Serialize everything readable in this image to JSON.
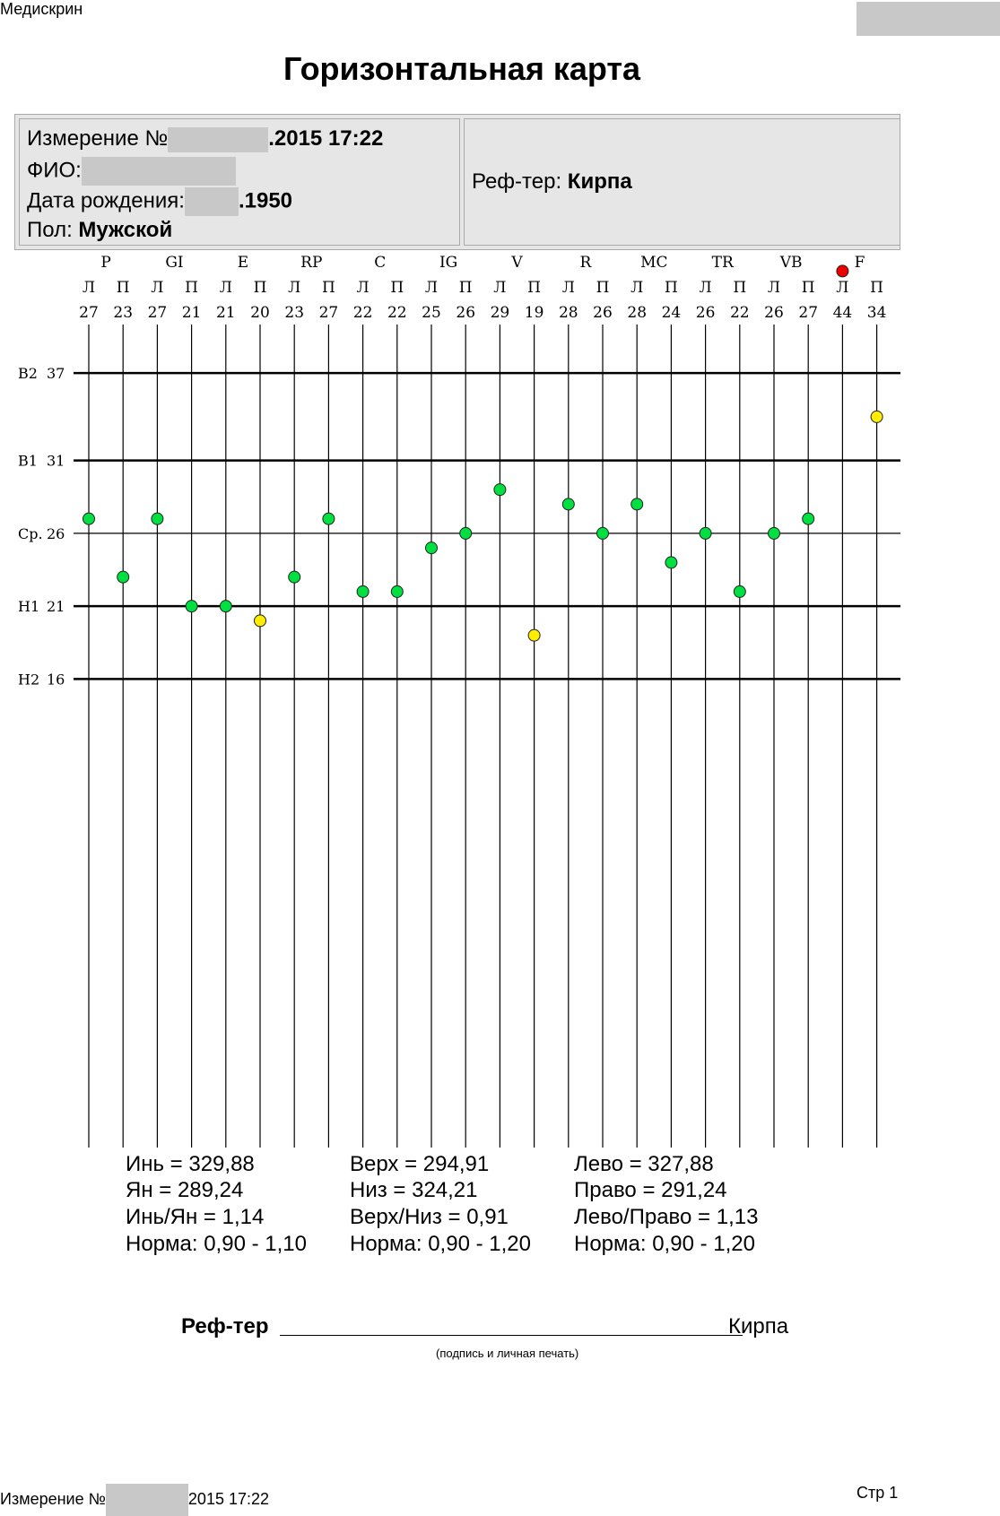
{
  "header": {
    "app_name": "Медискрин",
    "title": "Горизонтальная карта"
  },
  "info": {
    "measurement_label": "Измерение №",
    "measurement_value": ".2015 17:22",
    "name_label": "ФИО:",
    "birth_label": "Дата рождения:",
    "birth_value": ".1950",
    "sex_label": "Пол:",
    "sex_value": "Мужской",
    "referee_label": "Реф-тер:",
    "referee_value": "Кирпа"
  },
  "chart_data": {
    "type": "scatter",
    "meridians": [
      "P",
      "GI",
      "E",
      "RP",
      "C",
      "IG",
      "V",
      "R",
      "MC",
      "TR",
      "VB",
      "F"
    ],
    "sides": [
      "Л",
      "П"
    ],
    "columns": [
      {
        "meridian": "P",
        "side": "Л",
        "value": 27,
        "status": "normal"
      },
      {
        "meridian": "P",
        "side": "П",
        "value": 23,
        "status": "normal"
      },
      {
        "meridian": "GI",
        "side": "Л",
        "value": 27,
        "status": "normal"
      },
      {
        "meridian": "GI",
        "side": "П",
        "value": 21,
        "status": "normal"
      },
      {
        "meridian": "E",
        "side": "Л",
        "value": 21,
        "status": "normal"
      },
      {
        "meridian": "E",
        "side": "П",
        "value": 20,
        "status": "warning"
      },
      {
        "meridian": "RP",
        "side": "Л",
        "value": 23,
        "status": "normal"
      },
      {
        "meridian": "RP",
        "side": "П",
        "value": 27,
        "status": "normal"
      },
      {
        "meridian": "C",
        "side": "Л",
        "value": 22,
        "status": "normal"
      },
      {
        "meridian": "C",
        "side": "П",
        "value": 22,
        "status": "normal"
      },
      {
        "meridian": "IG",
        "side": "Л",
        "value": 25,
        "status": "normal"
      },
      {
        "meridian": "IG",
        "side": "П",
        "value": 26,
        "status": "normal"
      },
      {
        "meridian": "V",
        "side": "Л",
        "value": 29,
        "status": "normal"
      },
      {
        "meridian": "V",
        "side": "П",
        "value": 19,
        "status": "warning"
      },
      {
        "meridian": "R",
        "side": "Л",
        "value": 28,
        "status": "normal"
      },
      {
        "meridian": "R",
        "side": "П",
        "value": 26,
        "status": "normal"
      },
      {
        "meridian": "MC",
        "side": "Л",
        "value": 28,
        "status": "normal"
      },
      {
        "meridian": "MC",
        "side": "П",
        "value": 24,
        "status": "normal"
      },
      {
        "meridian": "TR",
        "side": "Л",
        "value": 26,
        "status": "normal"
      },
      {
        "meridian": "TR",
        "side": "П",
        "value": 22,
        "status": "normal"
      },
      {
        "meridian": "VB",
        "side": "Л",
        "value": 26,
        "status": "normal"
      },
      {
        "meridian": "VB",
        "side": "П",
        "value": 27,
        "status": "normal"
      },
      {
        "meridian": "F",
        "side": "Л",
        "value": 44,
        "status": "critical"
      },
      {
        "meridian": "F",
        "side": "П",
        "value": 34,
        "status": "warning"
      }
    ],
    "levels": [
      {
        "label": "В2",
        "value": 37,
        "bold": true
      },
      {
        "label": "В1",
        "value": 31,
        "bold": true
      },
      {
        "label": "Ср.",
        "value": 26,
        "bold": false
      },
      {
        "label": "Н1",
        "value": 21,
        "bold": true
      },
      {
        "label": "Н2",
        "value": 16,
        "bold": true
      }
    ],
    "status_colors": {
      "normal": "#00e040",
      "warning": "#ffee00",
      "critical": "#ee0000"
    },
    "grid": true
  },
  "stats": {
    "yin_yang": [
      "Инь = 329,88",
      "Ян = 289,24",
      "Инь/Ян = 1,14",
      "Норма: 0,90 - 1,10"
    ],
    "top_bottom": [
      "Верх = 294,91",
      "Низ = 324,21",
      "Верх/Низ = 0,91",
      "Норма: 0,90 - 1,20"
    ],
    "left_right": [
      "Лево = 327,88",
      "Право = 291,24",
      "Лево/Право = 1,13",
      "Норма: 0,90 - 1,20"
    ]
  },
  "signature": {
    "label": "Реф-тер",
    "name": "Кирпа",
    "caption": "(подпись и личная печать)"
  },
  "footer": {
    "measurement_label": "Измерение №",
    "measurement_value": "2015 17:22",
    "page": "Стр 1"
  }
}
